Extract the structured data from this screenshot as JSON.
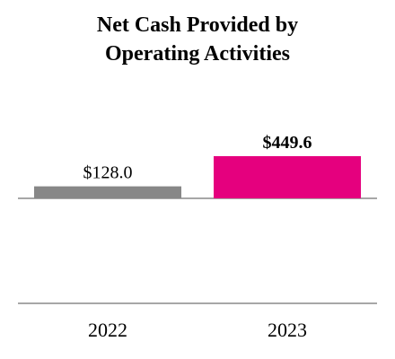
{
  "chart_data": {
    "type": "bar",
    "title": [
      "Net Cash Provided by",
      "Operating Activities"
    ],
    "categories": [
      "2022",
      "2023"
    ],
    "values": [
      128.0,
      449.6
    ],
    "data_labels": [
      "$128.0",
      "$449.6"
    ],
    "colors": [
      "#878787",
      "#E5007E"
    ],
    "axis_color": "#8a8a8a",
    "grid": false,
    "legend": "none",
    "ylim": [
      0,
      449.6
    ]
  }
}
